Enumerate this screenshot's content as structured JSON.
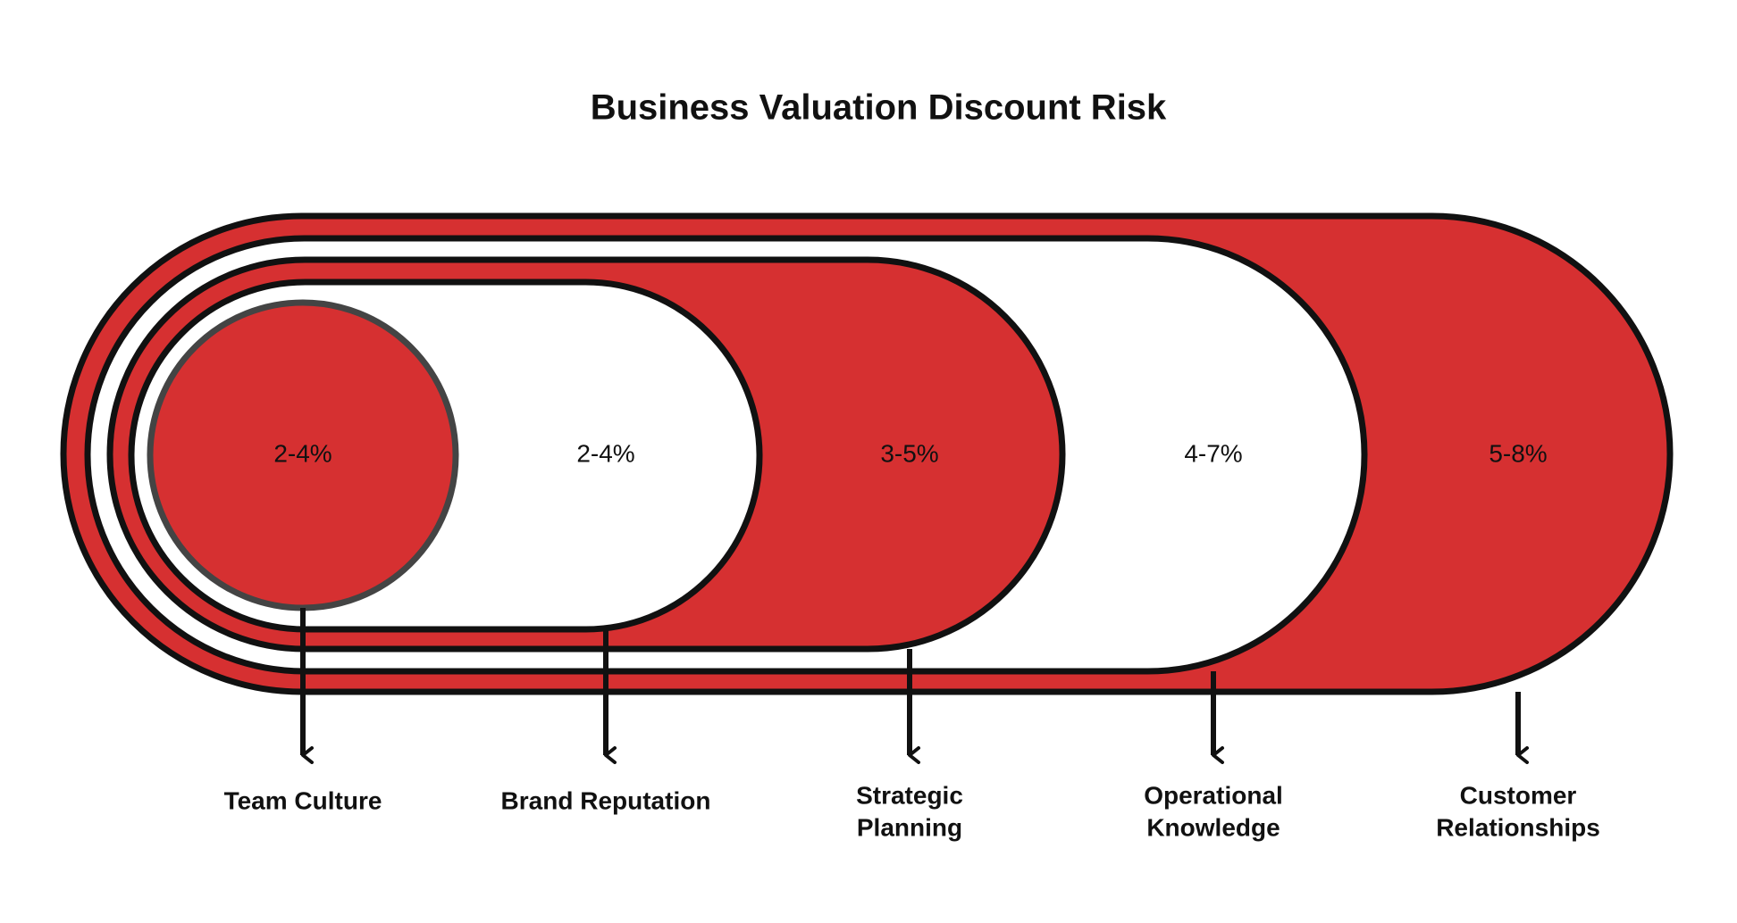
{
  "title": "Business Valuation Discount Risk",
  "nodes": [
    {
      "range": "2-4%",
      "label": [
        "Team Culture"
      ]
    },
    {
      "range": "2-4%",
      "label": [
        "Brand Reputation"
      ]
    },
    {
      "range": "3-5%",
      "label": [
        "Strategic",
        "Planning"
      ]
    },
    {
      "range": "4-7%",
      "label": [
        "Operational",
        "Knowledge"
      ]
    },
    {
      "range": "5-8%",
      "label": [
        "Customer",
        "Relationships"
      ]
    }
  ]
}
